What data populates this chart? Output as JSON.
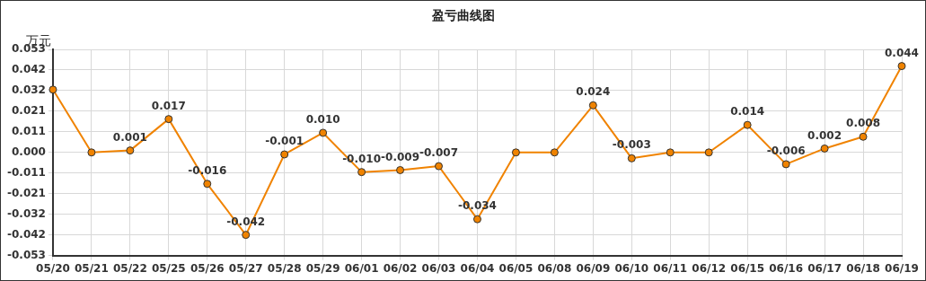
{
  "chart_data": {
    "type": "line",
    "title": "盈亏曲线图",
    "ylabel": "万元",
    "categories": [
      "05/20",
      "05/21",
      "05/22",
      "05/25",
      "05/26",
      "05/27",
      "05/28",
      "05/29",
      "06/01",
      "06/02",
      "06/03",
      "06/04",
      "06/05",
      "06/08",
      "06/09",
      "06/10",
      "06/11",
      "06/12",
      "06/15",
      "06/16",
      "06/17",
      "06/18",
      "06/19"
    ],
    "series": [
      {
        "color": "#f08300",
        "values": [
          0.032,
          0,
          0.001,
          0.017,
          -0.016,
          -0.042,
          -0.001,
          0.01,
          -0.01,
          -0.009,
          -0.007,
          -0.034,
          0,
          0,
          0.024,
          -0.003,
          0,
          0,
          0.014,
          -0.006,
          0.002,
          0.008,
          0.044
        ],
        "value_labels": [
          null,
          null,
          "0.001",
          "0.017",
          "-0.016",
          "-0.042",
          "-0.001",
          "0.010",
          "-0.010",
          "-0.009",
          "-0.007",
          "-0.034",
          null,
          null,
          "0.024",
          "-0.003",
          null,
          null,
          "0.014",
          "-0.006",
          "0.002",
          "0.008",
          "0.044"
        ]
      }
    ],
    "ylim": [
      -0.0525,
      0.0525
    ],
    "yticks": [
      {
        "value": -0.0525,
        "label": "-0.053"
      },
      {
        "value": -0.042,
        "label": "-0.042"
      },
      {
        "value": -0.0315,
        "label": "-0.032"
      },
      {
        "value": -0.021,
        "label": "-0.021"
      },
      {
        "value": -0.0105,
        "label": "-0.011"
      },
      {
        "value": 0,
        "label": "0.000"
      },
      {
        "value": 0.0105,
        "label": "0.011"
      },
      {
        "value": 0.021,
        "label": "0.021"
      },
      {
        "value": 0.0315,
        "label": "0.032"
      },
      {
        "value": 0.042,
        "label": "0.042"
      },
      {
        "value": 0.0525,
        "label": "0.053"
      }
    ],
    "grid": true,
    "marker": "circle",
    "line_style": "solid"
  }
}
